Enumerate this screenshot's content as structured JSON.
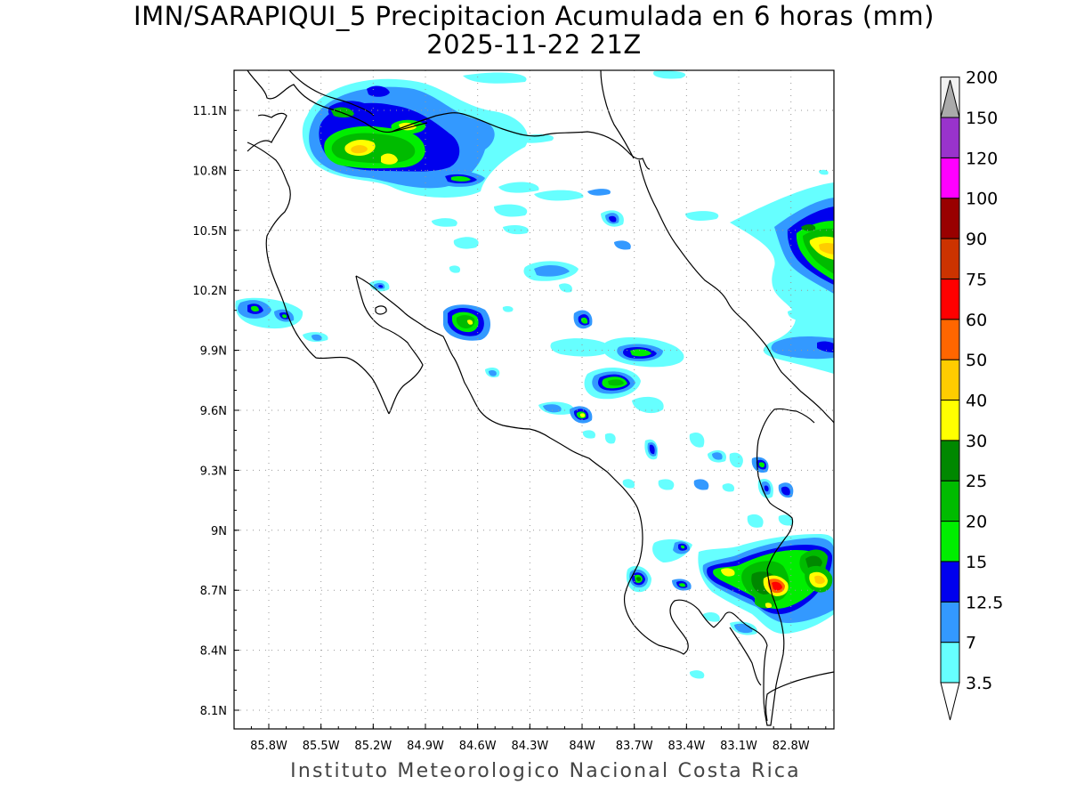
{
  "map": {
    "title_line1": "IMN/SARAPIQUI_5 Precipitacion Acumulada en 6 horas (mm)",
    "title_line2": "2025-11-22 21Z",
    "footer": "Instituto Meteorologico Nacional Costa Rica",
    "lon_labels": [
      "85.8W",
      "85.5W",
      "85.2W",
      "84.9W",
      "84.6W",
      "84.3W",
      "84W",
      "83.7W",
      "83.4W",
      "83.1W",
      "82.8W"
    ],
    "lat_labels": [
      "11.1N",
      "10.8N",
      "10.5N",
      "10.2N",
      "9.9N",
      "9.6N",
      "9.3N",
      "9N",
      "8.7N",
      "8.4N",
      "8.1N"
    ]
  },
  "colorbar": {
    "levels": [
      {
        "label": "3.5",
        "color": "#66ffff"
      },
      {
        "label": "7",
        "color": "#3399ff"
      },
      {
        "label": "12.5",
        "color": "#0000ee"
      },
      {
        "label": "15",
        "color": "#00ee00"
      },
      {
        "label": "20",
        "color": "#00bb00"
      },
      {
        "label": "25",
        "color": "#008800"
      },
      {
        "label": "30",
        "color": "#ffff00"
      },
      {
        "label": "40",
        "color": "#ffcc00"
      },
      {
        "label": "50",
        "color": "#ff6600"
      },
      {
        "label": "60",
        "color": "#ff0000"
      },
      {
        "label": "75",
        "color": "#cc3300"
      },
      {
        "label": "90",
        "color": "#990000"
      },
      {
        "label": "100",
        "color": "#ff00ff"
      },
      {
        "label": "120",
        "color": "#9933cc"
      },
      {
        "label": "150",
        "color": "#f2f2f2"
      },
      {
        "label": "200",
        "color": "#aaaaaa"
      }
    ]
  }
}
